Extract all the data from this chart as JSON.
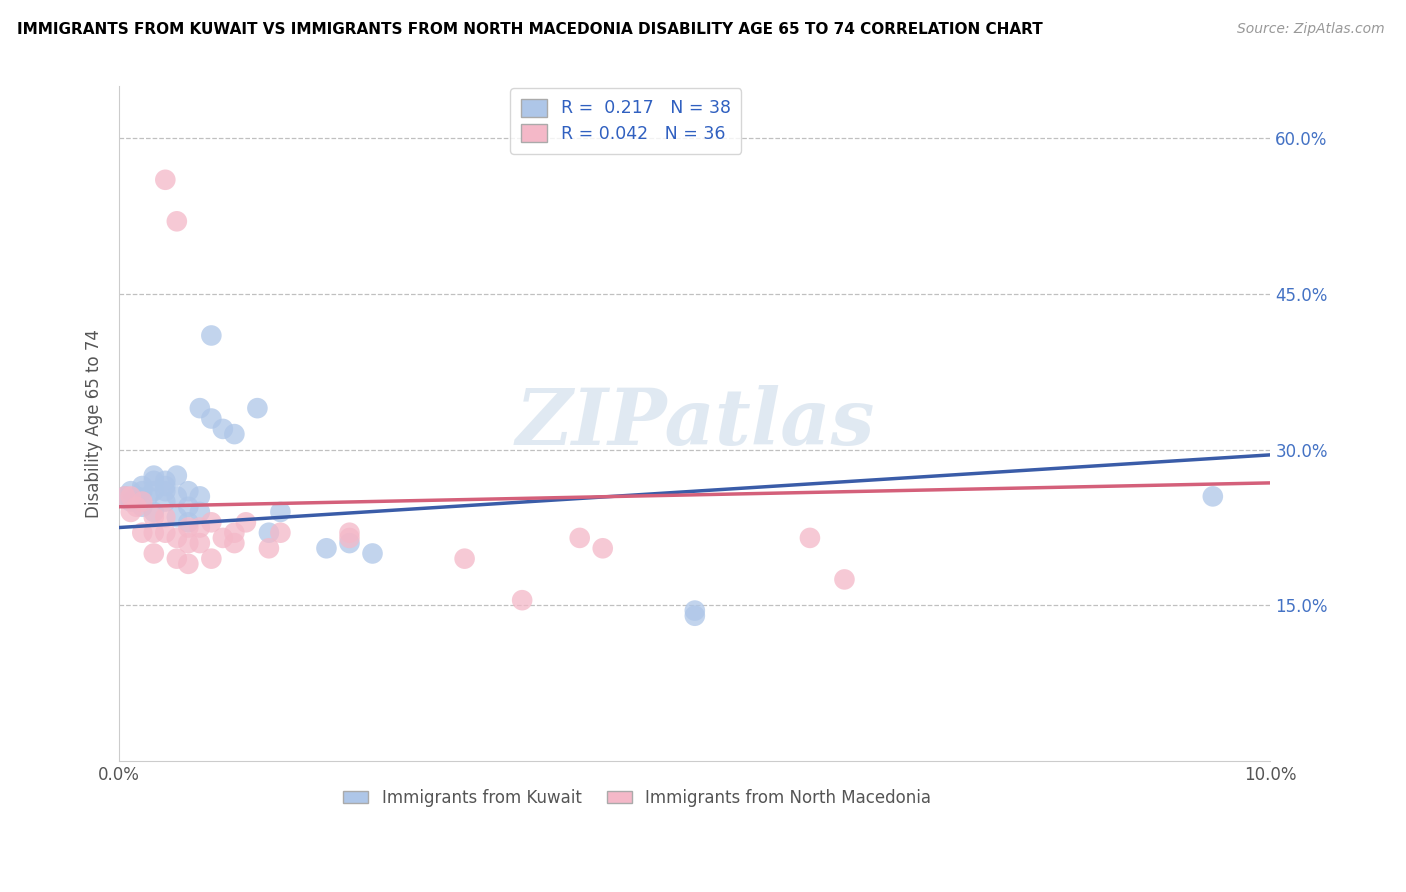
{
  "title": "IMMIGRANTS FROM KUWAIT VS IMMIGRANTS FROM NORTH MACEDONIA DISABILITY AGE 65 TO 74 CORRELATION CHART",
  "source": "Source: ZipAtlas.com",
  "ylabel": "Disability Age 65 to 74",
  "xlim": [
    0.0,
    0.1
  ],
  "ylim": [
    0.0,
    0.65
  ],
  "kuwait_color": "#aec6e8",
  "macedonia_color": "#f4b8c8",
  "kuwait_line_color": "#3a5ca8",
  "macedonia_line_color": "#d4607a",
  "r_kuwait": 0.217,
  "n_kuwait": 38,
  "r_macedonia": 0.042,
  "n_macedonia": 36,
  "legend_labels": [
    "Immigrants from Kuwait",
    "Immigrants from North Macedonia"
  ],
  "kuwait_x": [
    0.0005,
    0.001,
    0.001,
    0.0015,
    0.002,
    0.002,
    0.002,
    0.0025,
    0.003,
    0.003,
    0.003,
    0.003,
    0.004,
    0.004,
    0.004,
    0.004,
    0.005,
    0.005,
    0.005,
    0.006,
    0.006,
    0.006,
    0.007,
    0.007,
    0.008,
    0.009,
    0.01,
    0.012,
    0.013,
    0.014,
    0.018,
    0.02,
    0.022,
    0.05,
    0.05,
    0.007,
    0.008,
    0.095
  ],
  "kuwait_y": [
    0.255,
    0.25,
    0.26,
    0.255,
    0.245,
    0.26,
    0.265,
    0.255,
    0.24,
    0.26,
    0.27,
    0.275,
    0.25,
    0.265,
    0.26,
    0.27,
    0.235,
    0.255,
    0.275,
    0.23,
    0.245,
    0.26,
    0.24,
    0.255,
    0.33,
    0.32,
    0.315,
    0.34,
    0.22,
    0.24,
    0.205,
    0.21,
    0.2,
    0.14,
    0.145,
    0.34,
    0.41,
    0.255
  ],
  "macedonia_x": [
    0.0005,
    0.001,
    0.001,
    0.0015,
    0.002,
    0.002,
    0.003,
    0.003,
    0.003,
    0.004,
    0.004,
    0.005,
    0.005,
    0.006,
    0.006,
    0.006,
    0.007,
    0.007,
    0.008,
    0.008,
    0.009,
    0.01,
    0.01,
    0.011,
    0.013,
    0.014,
    0.02,
    0.02,
    0.03,
    0.035,
    0.04,
    0.042,
    0.06,
    0.063,
    0.004,
    0.005
  ],
  "macedonia_y": [
    0.255,
    0.24,
    0.255,
    0.245,
    0.25,
    0.22,
    0.22,
    0.235,
    0.2,
    0.22,
    0.235,
    0.195,
    0.215,
    0.21,
    0.225,
    0.19,
    0.21,
    0.225,
    0.23,
    0.195,
    0.215,
    0.22,
    0.21,
    0.23,
    0.205,
    0.22,
    0.215,
    0.22,
    0.195,
    0.155,
    0.215,
    0.205,
    0.215,
    0.175,
    0.56,
    0.52
  ]
}
